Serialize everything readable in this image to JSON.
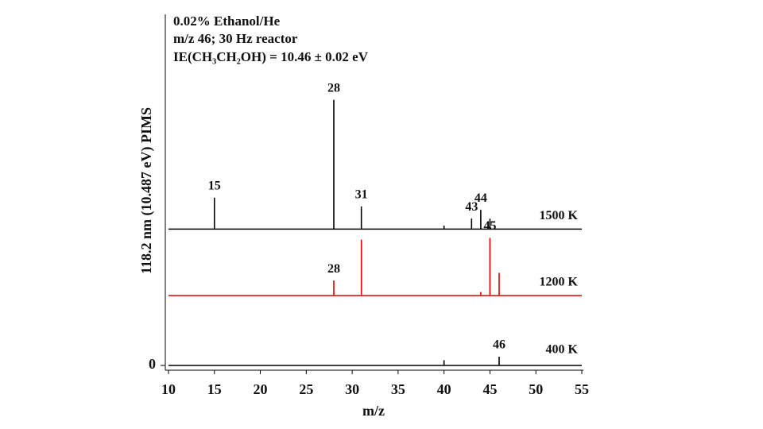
{
  "chart_data": {
    "type": "spectrum",
    "title_lines": [
      "0.02% Ethanol/He",
      "m/z 46; 30 Hz reactor",
      "IE(CH₃CH₂OH) = 10.46 ± 0.02 eV"
    ],
    "x_label": "m/z",
    "y_label": "118.2 nm (10.487 eV) PIMS",
    "xlim": [
      10,
      55
    ],
    "xticks": [
      10,
      15,
      20,
      25,
      30,
      35,
      40,
      45,
      50,
      55
    ],
    "ylim": [
      0,
      100
    ],
    "yticks": [
      0
    ],
    "series": [
      {
        "name": "1500 K",
        "color": "#000000",
        "baseline": 39,
        "peaks": [
          {
            "x": 15,
            "value": 48
          },
          {
            "x": 28,
            "value": 76
          },
          {
            "x": 31,
            "value": 45.5
          },
          {
            "x": 40,
            "value": 40
          },
          {
            "x": 43,
            "value": 42
          },
          {
            "x": 44,
            "value": 44.5
          },
          {
            "x": 45,
            "value": 42
          }
        ],
        "labels": [
          15,
          28,
          31,
          43,
          44
        ]
      },
      {
        "name": "1200 K",
        "color": "#e00000",
        "baseline": 20,
        "peaks": [
          {
            "x": 28,
            "value": 24.3
          },
          {
            "x": 31,
            "value": 36
          },
          {
            "x": 44,
            "value": 21
          },
          {
            "x": 45,
            "value": 36.5
          },
          {
            "x": 46,
            "value": 26.5
          }
        ],
        "labels": [
          28,
          45
        ]
      },
      {
        "name": "400 K",
        "color": "#000000",
        "baseline": 0,
        "peaks": [
          {
            "x": 40,
            "value": 1.5
          },
          {
            "x": 46,
            "value": 2.5
          }
        ],
        "labels": [
          46
        ]
      }
    ]
  }
}
